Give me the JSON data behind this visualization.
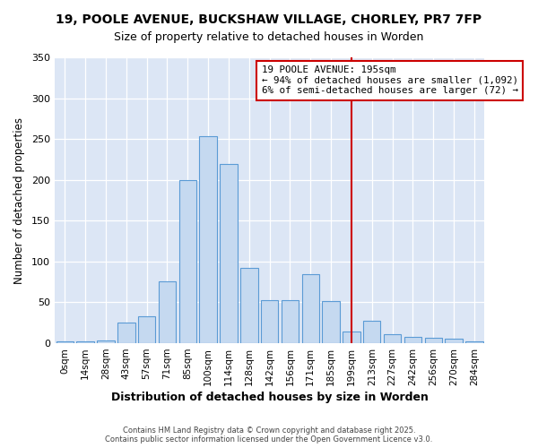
{
  "title_line1": "19, POOLE AVENUE, BUCKSHAW VILLAGE, CHORLEY, PR7 7FP",
  "title_line2": "Size of property relative to detached houses in Worden",
  "xlabel": "Distribution of detached houses by size in Worden",
  "ylabel": "Number of detached properties",
  "bar_labels": [
    "0sqm",
    "14sqm",
    "28sqm",
    "43sqm",
    "57sqm",
    "71sqm",
    "85sqm",
    "100sqm",
    "114sqm",
    "128sqm",
    "142sqm",
    "156sqm",
    "171sqm",
    "185sqm",
    "199sqm",
    "213sqm",
    "227sqm",
    "242sqm",
    "256sqm",
    "270sqm",
    "284sqm"
  ],
  "bar_values": [
    2,
    2,
    3,
    25,
    33,
    76,
    200,
    253,
    220,
    92,
    53,
    53,
    85,
    52,
    14,
    28,
    11,
    8,
    7,
    6,
    2
  ],
  "bar_color": "#c5d9f0",
  "bar_edge_color": "#5b9bd5",
  "plot_bg_color": "#dce6f5",
  "fig_bg_color": "#ffffff",
  "grid_color": "#ffffff",
  "vline_color": "#cc0000",
  "vline_x_index": 14,
  "annotation_text": "19 POOLE AVENUE: 195sqm\n← 94% of detached houses are smaller (1,092)\n6% of semi-detached houses are larger (72) →",
  "annotation_box_facecolor": "#ffffff",
  "annotation_box_edgecolor": "#cc0000",
  "ylim": [
    0,
    350
  ],
  "yticks": [
    0,
    50,
    100,
    150,
    200,
    250,
    300,
    350
  ],
  "footnote": "Contains HM Land Registry data © Crown copyright and database right 2025.\nContains public sector information licensed under the Open Government Licence v3.0."
}
